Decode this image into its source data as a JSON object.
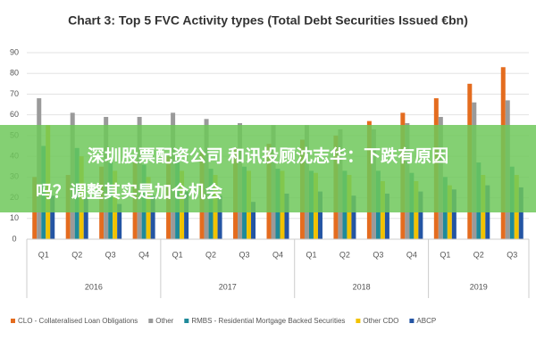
{
  "chart_data": {
    "type": "bar",
    "title": "Chart 3: Top 5 FVC Activity types (Total Debt Securities Issued €bn)",
    "groups": [
      {
        "label": "2016",
        "categories": [
          "Q1",
          "Q2",
          "Q3",
          "Q4"
        ]
      },
      {
        "label": "2017",
        "categories": [
          "Q1",
          "Q2",
          "Q3",
          "Q4"
        ]
      },
      {
        "label": "2018",
        "categories": [
          "Q1",
          "Q2",
          "Q3",
          "Q4"
        ]
      },
      {
        "label": "2019",
        "categories": [
          "Q1",
          "Q2",
          "Q3"
        ]
      }
    ],
    "series": [
      {
        "name": "CLO - Collateralised Loan Obligations",
        "color": "#e46c1f",
        "values": [
          30,
          31,
          35,
          38,
          40,
          42,
          44,
          46,
          48,
          50,
          57,
          61,
          68,
          75,
          83
        ]
      },
      {
        "name": "Other",
        "color": "#9a9a9a",
        "values": [
          68,
          61,
          59,
          59,
          61,
          58,
          56,
          55,
          55,
          53,
          53,
          56,
          59,
          66,
          67
        ]
      },
      {
        "name": "RMBS - Residential Mortgage Backed Securities",
        "color": "#1f8a9a",
        "values": [
          45,
          44,
          37,
          36,
          38,
          34,
          35,
          34,
          33,
          33,
          33,
          32,
          30,
          37,
          35
        ]
      },
      {
        "name": "Other CDO",
        "color": "#f2c200",
        "values": [
          55,
          40,
          33,
          30,
          33,
          31,
          33,
          33,
          32,
          31,
          28,
          28,
          26,
          31,
          31
        ]
      },
      {
        "name": "ABCP",
        "color": "#2455a4",
        "values": [
          21,
          20,
          17,
          21,
          23,
          21,
          18,
          22,
          23,
          21,
          22,
          23,
          24,
          26,
          25
        ]
      }
    ],
    "ylim": [
      0,
      90
    ],
    "yticks": [
      0,
      10,
      20,
      30,
      40,
      50,
      60,
      70,
      80,
      90
    ],
    "grid": true
  },
  "overlay_text": [
    "深圳股票配资公司 和讯投顾沈志华：下跌有原因",
    "吗？调整其实是加仓机会"
  ]
}
